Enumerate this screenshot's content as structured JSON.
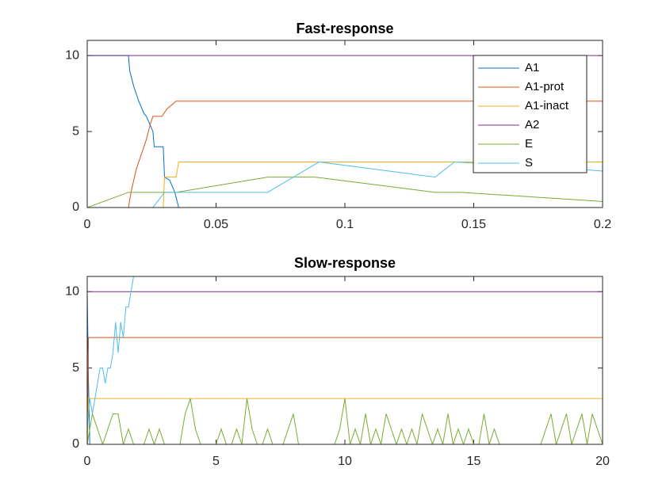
{
  "chart_data": [
    {
      "type": "line",
      "title": "Fast-response",
      "xlim": [
        0,
        0.2
      ],
      "ylim": [
        0,
        11
      ],
      "xticks": [
        0,
        0.05,
        0.1,
        0.15,
        0.2
      ],
      "yticks": [
        0,
        5,
        10
      ],
      "grid": false,
      "legend": "northeast",
      "series": [
        {
          "name": "A1",
          "color": "#0072BD",
          "x": [
            0,
            0.016,
            0.0165,
            0.018,
            0.02,
            0.022,
            0.023,
            0.0255,
            0.026,
            0.0295,
            0.03,
            0.032,
            0.034,
            0.0355,
            0.2
          ],
          "values": [
            10,
            10,
            9,
            8,
            7,
            6.2,
            6,
            5,
            4,
            4,
            2,
            1.8,
            1,
            0,
            0
          ]
        },
        {
          "name": "A1-prot",
          "color": "#D95319",
          "x": [
            0,
            0.016,
            0.017,
            0.019,
            0.021,
            0.023,
            0.0245,
            0.0255,
            0.029,
            0.031,
            0.0345,
            0.2
          ],
          "values": [
            0,
            0,
            1,
            2.5,
            3.5,
            4.5,
            5.5,
            6,
            6,
            6.5,
            7,
            7
          ]
        },
        {
          "name": "A1-inact",
          "color": "#EDB120",
          "x": [
            0,
            0.0295,
            0.03,
            0.0345,
            0.0355,
            0.2
          ],
          "values": [
            0,
            0,
            2,
            2,
            3,
            3
          ]
        },
        {
          "name": "A2",
          "color": "#7E2F8E",
          "x": [
            0,
            0.2
          ],
          "values": [
            10,
            10
          ]
        },
        {
          "name": "E",
          "color": "#77AC30",
          "x": [
            0,
            0.016,
            0.0345,
            0.07,
            0.0885,
            0.135,
            0.145,
            0.2
          ],
          "values": [
            0,
            1,
            1,
            2,
            2,
            1,
            1,
            0.4
          ]
        },
        {
          "name": "S",
          "color": "#4DBEEE",
          "x": [
            0,
            0.0255,
            0.03,
            0.07,
            0.09,
            0.135,
            0.1425,
            0.185,
            0.2
          ],
          "values": [
            0,
            0,
            1,
            1,
            3,
            2,
            3,
            2.6,
            2.4
          ]
        }
      ]
    },
    {
      "type": "line",
      "title": "Slow-response",
      "xlim": [
        0,
        20
      ],
      "ylim": [
        0,
        11
      ],
      "xticks": [
        0,
        5,
        10,
        15,
        20
      ],
      "yticks": [
        0,
        5,
        10
      ],
      "grid": false,
      "series": [
        {
          "color": "#0072BD",
          "x": [
            0,
            0.05,
            0.1,
            20
          ],
          "values": [
            10,
            4,
            0,
            0
          ]
        },
        {
          "color": "#D95319",
          "x": [
            0,
            0.05,
            20
          ],
          "values": [
            0,
            7,
            7
          ]
        },
        {
          "color": "#EDB120",
          "x": [
            0,
            0.05,
            20
          ],
          "values": [
            0,
            3,
            3
          ]
        },
        {
          "color": "#7E2F8E",
          "x": [
            0,
            20
          ],
          "values": [
            10,
            10
          ]
        },
        {
          "color": "#77AC30",
          "x": [
            0,
            0.2,
            0.4,
            0.6,
            0.8,
            1,
            1.2,
            1.4,
            1.6,
            1.8,
            2,
            2.2,
            2.4,
            2.6,
            2.8,
            3,
            3.2,
            3.4,
            3.6,
            3.8,
            4,
            4.2,
            4.4,
            4.6,
            4.8,
            5,
            5.2,
            5.4,
            5.6,
            5.8,
            6,
            6.2,
            6.4,
            6.6,
            6.8,
            7,
            7.2,
            7.4,
            7.6,
            7.8,
            8,
            8.2,
            8.4,
            8.6,
            8.8,
            9,
            9.2,
            9.4,
            9.6,
            9.8,
            10,
            10.2,
            10.4,
            10.6,
            10.8,
            11,
            11.2,
            11.4,
            11.6,
            11.8,
            12,
            12.2,
            12.4,
            12.6,
            12.8,
            13,
            13.2,
            13.4,
            13.6,
            13.8,
            14,
            14.2,
            14.4,
            14.6,
            14.8,
            15,
            15.2,
            15.4,
            15.6,
            15.8,
            16,
            16.2,
            16.4,
            16.6,
            16.8,
            17,
            17.2,
            17.4,
            17.6,
            17.8,
            18,
            18.2,
            18.4,
            18.6,
            18.8,
            19,
            19.2,
            19.4,
            19.6,
            19.8,
            20
          ],
          "values": [
            0,
            2,
            1,
            0,
            1,
            2,
            2,
            0,
            1,
            0,
            0,
            0,
            1,
            0,
            1,
            0,
            0,
            0,
            0,
            2,
            3,
            1,
            0,
            0,
            0,
            0,
            1,
            0,
            0,
            1,
            0,
            3,
            1,
            0,
            0,
            1,
            0,
            0,
            0,
            1,
            2,
            0,
            0,
            0,
            0,
            0,
            0,
            0,
            0,
            1,
            3,
            0,
            1,
            0,
            2,
            0,
            1,
            0,
            2,
            1,
            0,
            1,
            0,
            1,
            0,
            2,
            1,
            0,
            1,
            0,
            2,
            0,
            1,
            0,
            1,
            0,
            0,
            2,
            0,
            1,
            0,
            0,
            0,
            0,
            0,
            0,
            0,
            0,
            0,
            1,
            2,
            0,
            1,
            2,
            0,
            1,
            2,
            0,
            2,
            1,
            0
          ]
        },
        {
          "color": "#4DBEEE",
          "x": [
            0,
            0.1,
            0.2,
            0.3,
            0.4,
            0.5,
            0.6,
            0.7,
            0.8,
            0.9,
            1,
            1.1,
            1.2,
            1.3,
            1.4,
            1.5,
            1.6,
            1.7,
            1.8
          ],
          "values": [
            1,
            3,
            2,
            3,
            4,
            5,
            5,
            4,
            5,
            5,
            6,
            8,
            6,
            8,
            7,
            9,
            9,
            10,
            11
          ]
        }
      ]
    }
  ]
}
